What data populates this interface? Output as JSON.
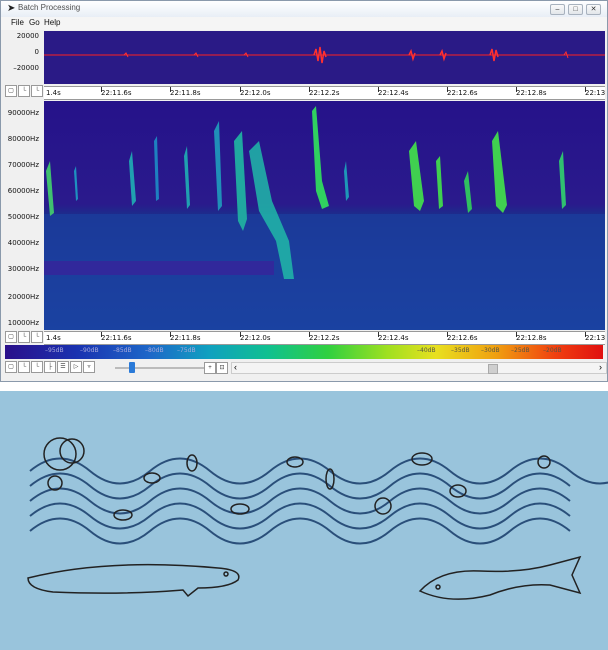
{
  "window": {
    "title": "Batch Processing",
    "controls": {
      "minimize": "–",
      "maximize": "□",
      "close": "✕"
    }
  },
  "menu": [
    "File",
    "Go",
    "Help"
  ],
  "waveform": {
    "y_labels": [
      "20000",
      "0",
      "–20000"
    ]
  },
  "time_axis": {
    "labels": [
      "1.4s",
      "22:11.6s",
      "22:11.8s",
      "22:12.0s",
      "22:12.2s",
      "22:12.4s",
      "22:12.6s",
      "22:12.8s",
      "22:13"
    ]
  },
  "spectrogram": {
    "freq_labels": [
      "90000Hz",
      "80000Hz",
      "70000Hz",
      "60000Hz",
      "50000Hz",
      "40000Hz",
      "30000Hz",
      "20000Hz",
      "10000Hz"
    ]
  },
  "colorbar": {
    "db_labels": [
      "–95dB",
      "–90dB",
      "–85dB",
      "–80dB",
      "–75dB",
      "–40dB",
      "–35dB",
      "–30dB",
      "–25dB",
      "–20dB"
    ]
  },
  "colors": {
    "spectrogram_bg": "#2a1a8c",
    "waveform_trace": "#ff2020",
    "illustration_bg": "#99c4dc"
  },
  "icons": [
    "app-icon",
    "zoom-out-icon",
    "zoom-in-icon",
    "filter-icon",
    "fit-icon",
    "scroll-left-icon",
    "scroll-right-icon"
  ]
}
